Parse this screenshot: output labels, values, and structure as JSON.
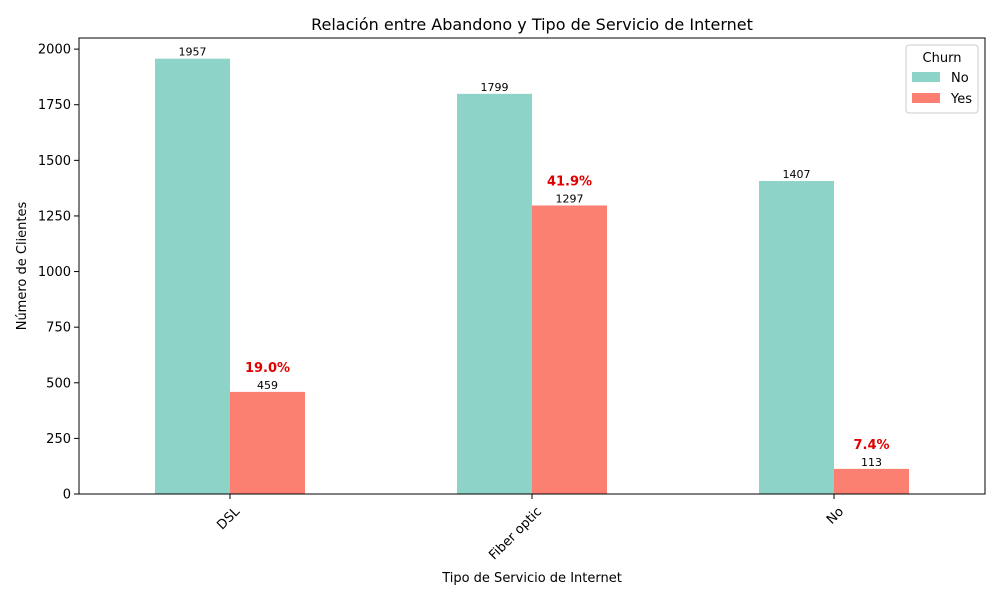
{
  "chart_data": {
    "type": "bar",
    "title": "Relación entre Abandono y Tipo de Servicio de Internet",
    "xlabel": "Tipo de Servicio de Internet",
    "ylabel": "Número de Clientes",
    "categories": [
      "DSL",
      "Fiber optic",
      "No"
    ],
    "series": [
      {
        "name": "No",
        "values": [
          1957,
          1799,
          1407
        ],
        "color": "#8dd3c7"
      },
      {
        "name": "Yes",
        "values": [
          459,
          1297,
          113
        ],
        "color": "#fb8072"
      }
    ],
    "churn_rate_labels": [
      "19.0%",
      "41.9%",
      "7.4%"
    ],
    "churn_rate_color": "#e00000",
    "ylim": [
      0,
      2050
    ],
    "yticks": [
      0,
      250,
      500,
      750,
      1000,
      1250,
      1500,
      1750,
      2000
    ],
    "legend": {
      "title": "Churn",
      "position": "top-right"
    },
    "grid": false
  }
}
